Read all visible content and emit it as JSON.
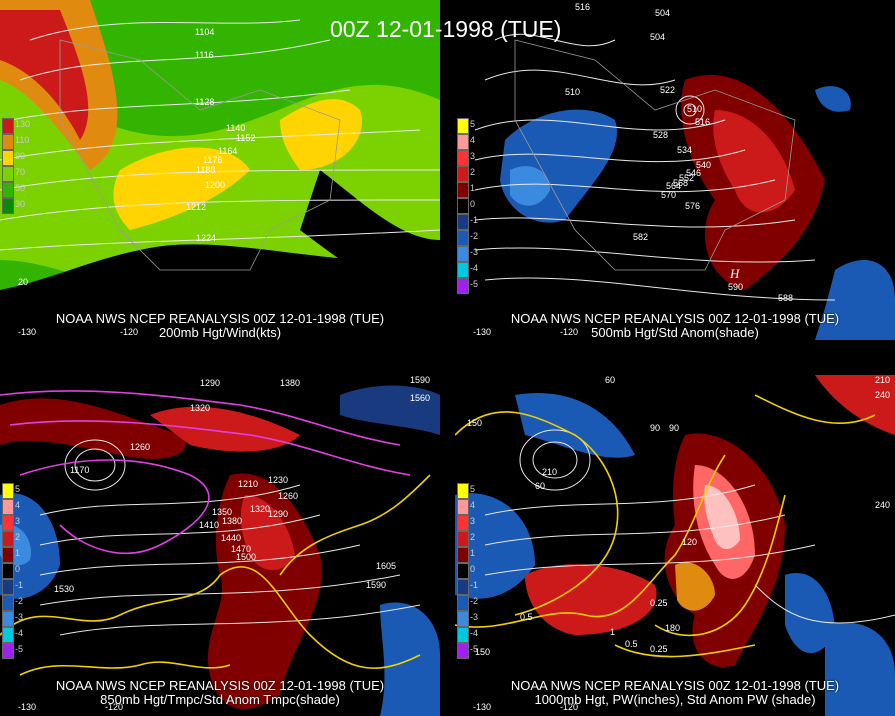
{
  "main_title": "00Z 12-01-1998 (TUE)",
  "panels": [
    {
      "id": "p200",
      "caption_line1": "NOAA NWS NCEP REANALYSIS 00Z 12-01-1998 (TUE)",
      "caption_line2": "200mb Hgt/Wind(kts)",
      "legend": [
        "130",
        "110",
        "90",
        "70",
        "50",
        "30"
      ],
      "legend_colors": [
        "#cc1a1a",
        "#e08a10",
        "#ffd400",
        "#7cd200",
        "#32b400",
        "#0a8a0a"
      ],
      "contour_labels": [
        "1104",
        "1116",
        "1128",
        "1140",
        "1152",
        "1164",
        "1176",
        "1188",
        "1200",
        "1212",
        "1224"
      ],
      "lon_labels": [
        "-130",
        "-120",
        "20"
      ]
    },
    {
      "id": "p500",
      "caption_line1": "NOAA NWS NCEP REANALYSIS 00Z 12-01-1998 (TUE)",
      "caption_line2": "500mb Hgt/Std Anom(shade)",
      "legend": [
        "5",
        "4",
        "3",
        "2",
        "1",
        "0",
        "-1",
        "-2",
        "-3",
        "-4",
        "-5"
      ],
      "legend_colors": [
        "#ffff00",
        "#ff9999",
        "#ff3333",
        "#cc1a1a",
        "#800000",
        "#000000",
        "#1a3a80",
        "#1a5ab4",
        "#3a8ae0",
        "#00c8e0",
        "#a020f0"
      ],
      "contour_labels": [
        "516",
        "504",
        "510",
        "504",
        "516",
        "510",
        "522",
        "528",
        "534",
        "540",
        "546",
        "552",
        "558",
        "564",
        "570",
        "576",
        "582",
        "588",
        "590"
      ],
      "highs": [
        "H"
      ],
      "lon_labels": [
        "-130",
        "-120"
      ]
    },
    {
      "id": "p850",
      "caption_line1": "NOAA NWS NCEP REANALYSIS 00Z 12-01-1998 (TUE)",
      "caption_line2": "850mb Hgt/Tmpc/Std Anom Tmpc(shade)",
      "legend": [
        "5",
        "4",
        "3",
        "2",
        "1",
        "0",
        "-1",
        "-2",
        "-3",
        "-4",
        "-5"
      ],
      "legend_colors": [
        "#ffff00",
        "#ff9999",
        "#ff3333",
        "#cc1a1a",
        "#800000",
        "#000000",
        "#1a3a80",
        "#1a5ab4",
        "#3a8ae0",
        "#00c8e0",
        "#a020f0"
      ],
      "contour_labels": [
        "1290",
        "1290",
        "1380",
        "1590",
        "1560",
        "1320",
        "1170",
        "1260",
        "1230",
        "1210",
        "1260",
        "1290",
        "1320",
        "1350",
        "1380",
        "1410",
        "1440",
        "1470",
        "1500",
        "1530",
        "1590",
        "1605"
      ],
      "lon_labels": [
        "-130",
        "-120"
      ]
    },
    {
      "id": "p1000",
      "caption_line1": "NOAA NWS NCEP REANALYSIS 00Z 12-01-1998 (TUE)",
      "caption_line2": "1000mb Hgt, PW(inches), Std Anom PW (shade)",
      "legend": [
        "5",
        "4",
        "3",
        "2",
        "1",
        "0",
        "-1",
        "-2",
        "-3",
        "-4",
        "-5"
      ],
      "legend_colors": [
        "#ffff00",
        "#ff9999",
        "#ff3333",
        "#cc1a1a",
        "#800000",
        "#000000",
        "#1a3a80",
        "#1a5ab4",
        "#3a8ae0",
        "#00c8e0",
        "#a020f0"
      ],
      "contour_labels": [
        "60",
        "90",
        "210",
        "240",
        "150",
        "120",
        "90",
        "60",
        "210",
        "240",
        "150",
        "180",
        "0.5",
        "0.25",
        "0.5",
        "0.25",
        "1"
      ],
      "lon_labels": [
        "-130",
        "-120"
      ]
    }
  ]
}
